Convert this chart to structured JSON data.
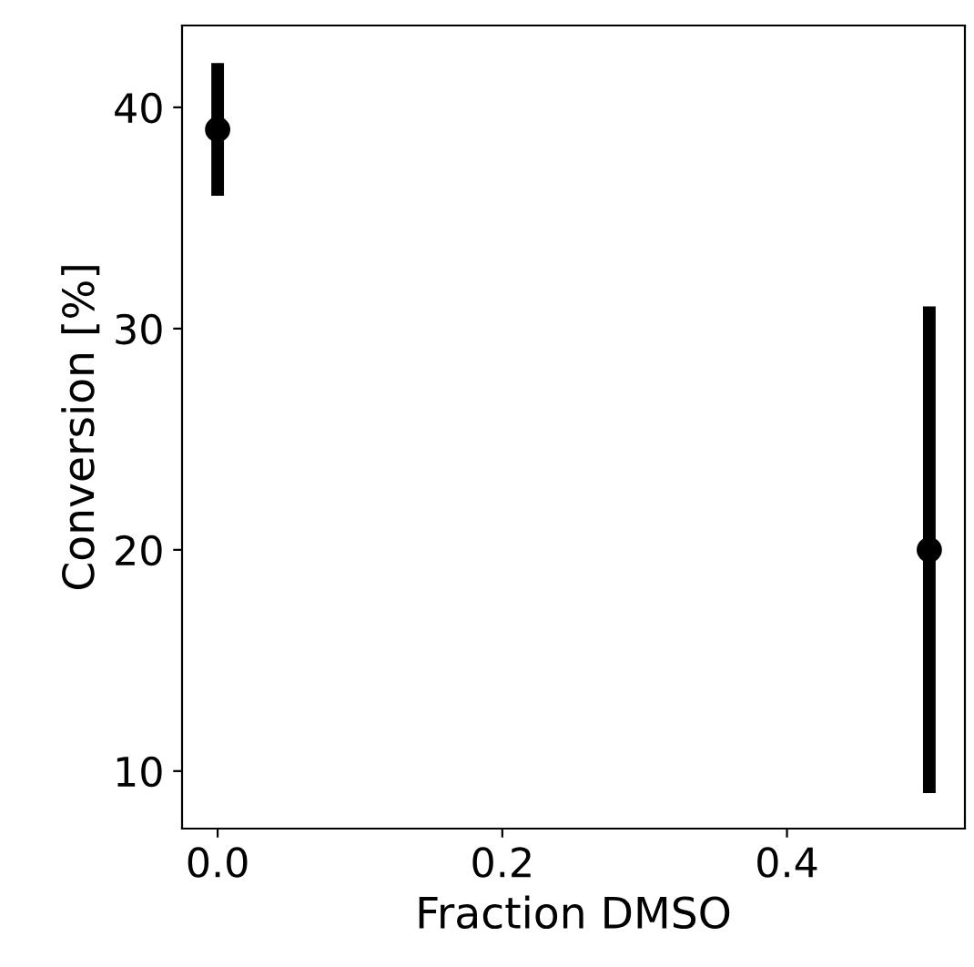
{
  "chart_data": {
    "type": "scatter",
    "xlabel": "Fraction DMSO",
    "ylabel": "Conversion [%]",
    "x": [
      0.0,
      0.5
    ],
    "values": [
      39,
      20
    ],
    "errors": [
      3,
      11
    ],
    "color": "#000000",
    "marker": "circle",
    "xlim": [
      -0.025,
      0.525
    ],
    "ylim": [
      7.4,
      43.7
    ],
    "xticks": [
      {
        "value": 0.0,
        "label": "0.0"
      },
      {
        "value": 0.2,
        "label": "0.2"
      },
      {
        "value": 0.4,
        "label": "0.4"
      }
    ],
    "yticks": [
      10,
      20,
      30,
      40
    ],
    "grid": false
  }
}
